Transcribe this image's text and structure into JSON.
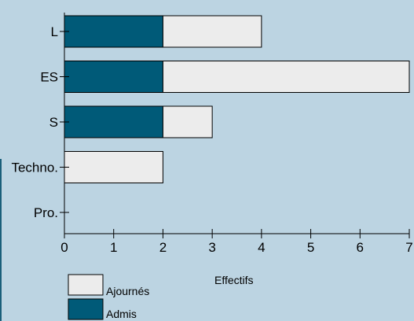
{
  "chart_data": {
    "type": "bar",
    "orientation": "horizontal",
    "stacked": true,
    "categories": [
      "L",
      "ES",
      "S",
      "Techno.",
      "Pro."
    ],
    "series": [
      {
        "name": "Admis",
        "values": [
          2,
          2,
          2,
          0,
          0
        ],
        "color": "#005a78"
      },
      {
        "name": "Ajournés",
        "values": [
          2,
          5,
          1,
          2,
          0
        ],
        "color": "#ececec"
      }
    ],
    "xlabel": "Effectifs",
    "ylabel": "",
    "xlim": [
      0,
      7
    ],
    "xticks": [
      "0",
      "1",
      "2",
      "3",
      "4",
      "5",
      "6",
      "7"
    ],
    "grid": false,
    "legend": {
      "position": "bottom-left",
      "order": [
        "Ajournés",
        "Admis"
      ]
    }
  },
  "colors": {
    "background": "#bcd4e2",
    "admis": "#005a78",
    "ajournes": "#ececec"
  }
}
